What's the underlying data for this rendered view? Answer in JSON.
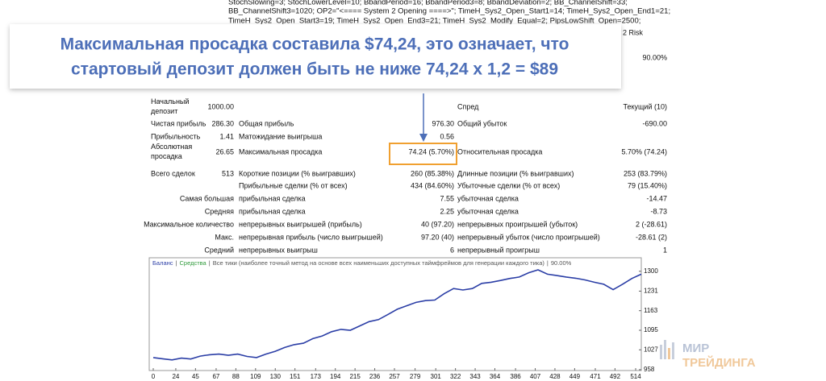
{
  "header": {
    "lines": [
      "StochSlowing=3; StochLowerLevel=10; BbandPeriod=16; BbandPeriod3=8; BbandDeviation=2; BB_ChannelShift=33;",
      "BB_ChannelShift3=1020; OP2=\"<==== System 2 Opening ====>\"; TimeH_Sys2_Open_Start1=14; TimeH_Sys2_Open_End1=21;",
      "TimeH_Sys2_Open_Start3=19; TimeH_Sys2_Open_End3=21; TimeH_Sys2_Modify_Equal=2; PipsLowShift_Open=2500;"
    ],
    "risk_label": "2 Risk",
    "risk_value": "90.00%"
  },
  "callout": {
    "lines": [
      "Максимальная просадка составила $74,24, это означает, что",
      "стартовый депозит должен быть не ниже 74,24 х 1,2 = $89"
    ]
  },
  "report": {
    "rows": [
      [
        "Начальный депозит",
        "1000.00",
        null,
        null,
        "Спред",
        "Текущий (10)"
      ],
      [
        "Чистая прибыль",
        "286.30",
        "Общая прибыль",
        "976.30",
        "Общий убыток",
        "-690.00"
      ],
      [
        "Прибыльность",
        "1.41",
        "Матожидание выигрыша",
        "0.56",
        null,
        null
      ],
      [
        "Абсолютная просадка",
        "26.65",
        "Максимальная просадка",
        "74.24 (5.70%)",
        "Относительная просадка",
        "5.70% (74.24)"
      ],
      [
        "Всего сделок",
        "513",
        "Короткие позиции (% выигравших)",
        "260 (85.38%)",
        "Длинные позиции (% выигравших)",
        "253 (83.79%)"
      ],
      [
        null,
        null,
        "Прибыльные сделки (% от всех)",
        "434 (84.60%)",
        "Убыточные сделки (% от всех)",
        "79 (15.40%)"
      ],
      [
        "Самая большая",
        null,
        "прибыльная сделка",
        "7.55",
        "убыточная сделка",
        "-14.47"
      ],
      [
        "Средняя",
        null,
        "прибыльная сделка",
        "2.25",
        "убыточная сделка",
        "-8.73"
      ],
      [
        "Максимальное количество",
        null,
        "непрерывных выигрышей (прибыль)",
        "40 (97.20)",
        "непрерывных проигрышей (убыток)",
        "2 (-28.61)"
      ],
      [
        "Макс.",
        null,
        "непрерывная прибыль (число выигрышей)",
        "97.20 (40)",
        "непрерывный убыток (число проигрышей)",
        "-28.61 (2)"
      ],
      [
        "Средний",
        null,
        "непрерывных выигрыш",
        "6",
        "непрерывный проигрыш",
        "1"
      ]
    ]
  },
  "chart_data": {
    "type": "line",
    "legend": {
      "separator": "|",
      "equity": "Средства",
      "model": "Все тики (наиболее точный метод на основе всех наименьших доступных таймфреймов для генерации каждого тика)",
      "quality": "90.00%"
    },
    "x": [
      0,
      10,
      20,
      30,
      40,
      50,
      60,
      70,
      80,
      90,
      100,
      110,
      120,
      130,
      140,
      150,
      160,
      170,
      180,
      190,
      200,
      210,
      220,
      230,
      240,
      250,
      260,
      270,
      280,
      290,
      300,
      310,
      320,
      330,
      340,
      350,
      360,
      370,
      380,
      390,
      400,
      410,
      420,
      430,
      440,
      450,
      460,
      470,
      480,
      490,
      500,
      510,
      520
    ],
    "series": [
      {
        "name": "Баланс",
        "color": "#2b3ea6",
        "values": [
          1000,
          996,
          992,
          998,
          995,
          1005,
          1010,
          1012,
          1008,
          1012,
          1004,
          1000,
          1012,
          1022,
          1035,
          1045,
          1050,
          1066,
          1075,
          1090,
          1098,
          1095,
          1110,
          1125,
          1132,
          1150,
          1168,
          1180,
          1192,
          1198,
          1200,
          1222,
          1240,
          1235,
          1240,
          1258,
          1262,
          1268,
          1275,
          1280,
          1295,
          1305,
          1290,
          1285,
          1280,
          1276,
          1270,
          1262,
          1255,
          1236,
          1255,
          1275,
          1290
        ]
      }
    ],
    "equity_color": "#2e9a3a",
    "xlim": [
      0,
      520
    ],
    "ylim": [
      955,
      1347
    ],
    "xticks": [
      0,
      24,
      45,
      67,
      88,
      109,
      130,
      151,
      173,
      194,
      215,
      236,
      257,
      279,
      301,
      322,
      343,
      364,
      386,
      407,
      428,
      449,
      471,
      492,
      514
    ],
    "yticks": [
      958,
      1027,
      1095,
      1163,
      1231,
      1300
    ]
  },
  "logo": {
    "line1": "МИР",
    "line2": "ТРЕЙДИНГА"
  }
}
